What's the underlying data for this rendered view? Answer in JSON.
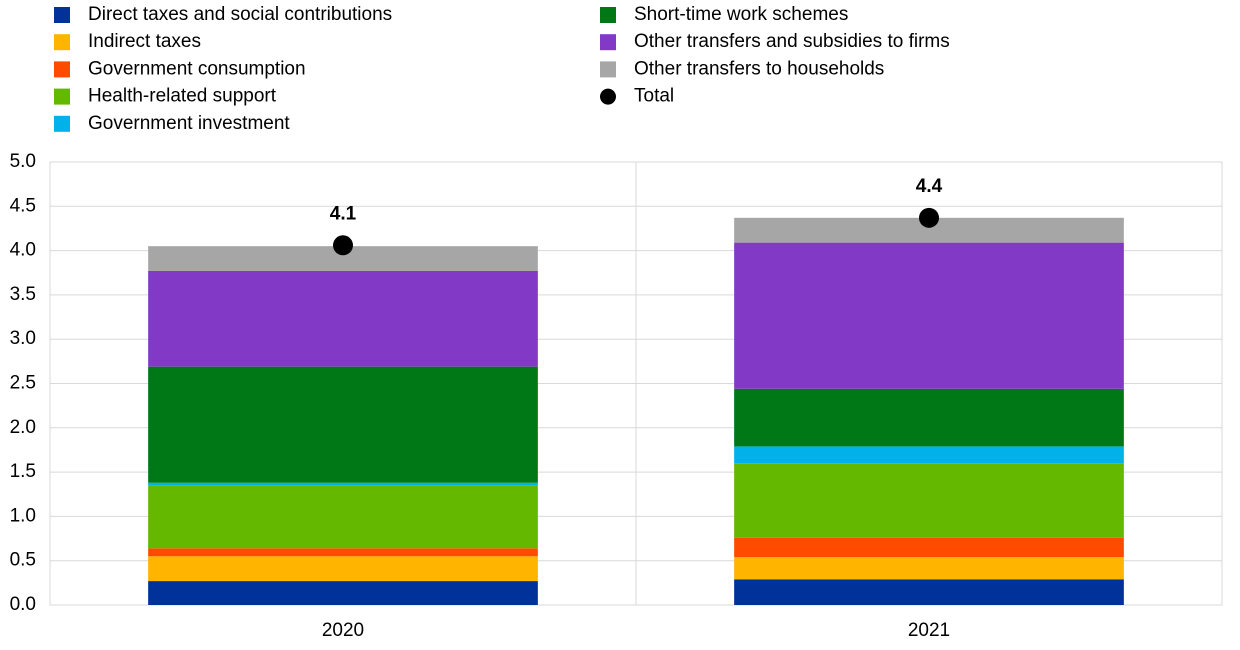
{
  "chart_data": {
    "type": "stacked-bar",
    "categories": [
      "2020",
      "2021"
    ],
    "series": [
      {
        "name": "Direct taxes and social contributions",
        "color": "#003299",
        "values": [
          0.27,
          0.29
        ]
      },
      {
        "name": "Indirect taxes",
        "color": "#ffb400",
        "values": [
          0.28,
          0.25
        ]
      },
      {
        "name": "Government consumption",
        "color": "#ff4b00",
        "values": [
          0.09,
          0.22
        ]
      },
      {
        "name": "Health-related support",
        "color": "#65b800",
        "values": [
          0.71,
          0.84
        ]
      },
      {
        "name": "Government investment",
        "color": "#00b1ea",
        "values": [
          0.03,
          0.19
        ]
      },
      {
        "name": "Short-time work schemes",
        "color": "#007816",
        "values": [
          1.31,
          0.65
        ]
      },
      {
        "name": "Other transfers and subsidies to firms",
        "color": "#8139c6",
        "values": [
          1.08,
          1.65
        ]
      },
      {
        "name": "Other transfers to households",
        "color": "#a6a6a6",
        "values": [
          0.28,
          0.28
        ]
      }
    ],
    "total": {
      "name": "Total",
      "color": "#000000",
      "values": [
        4.06,
        4.37
      ],
      "value_labels": [
        "4.1",
        "4.4"
      ]
    },
    "ylim": [
      0,
      5
    ],
    "yticks": [
      {
        "value": 0,
        "label": "0.0"
      },
      0.5,
      {
        "value": 1,
        "label": "1.0"
      },
      1.5,
      {
        "value": 2,
        "label": "2.0"
      },
      2.5,
      {
        "value": 3,
        "label": "3.0"
      },
      3.5,
      {
        "value": 4,
        "label": "4.0"
      },
      4.5,
      {
        "value": 5,
        "label": "5.0"
      }
    ],
    "grid": true
  }
}
